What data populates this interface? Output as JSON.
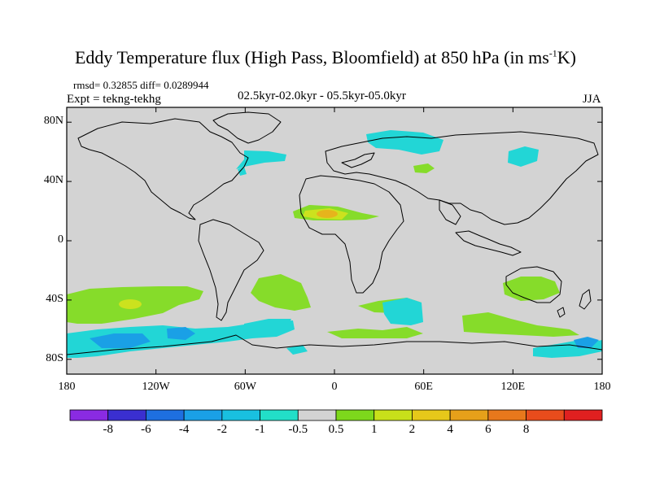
{
  "title": {
    "main": "Eddy Temperature flux (High Pass, Bloomfield) at 850 hPa (in ms",
    "sup": "-1",
    "unit_end": "K)"
  },
  "stats": "rmsd= 0.32855  diff= 0.0289944",
  "experiment": "Expt = tekng-tekhg",
  "period": "02.5kyr-02.0kyr - 05.5kyr-05.0kyr",
  "season": "JJA",
  "axes": {
    "y_ticks": [
      {
        "label": "80N",
        "lat": 80
      },
      {
        "label": "40N",
        "lat": 40
      },
      {
        "label": "0",
        "lat": 0
      },
      {
        "label": "40S",
        "lat": -40
      },
      {
        "label": "80S",
        "lat": -80
      }
    ],
    "x_ticks": [
      {
        "label": "180",
        "lon": -180
      },
      {
        "label": "120W",
        "lon": -120
      },
      {
        "label": "60W",
        "lon": -60
      },
      {
        "label": "0",
        "lon": 0
      },
      {
        "label": "60E",
        "lon": 60
      },
      {
        "label": "120E",
        "lon": 120
      },
      {
        "label": "180",
        "lon": 180
      }
    ]
  },
  "colorbar": {
    "colors": [
      "#8a2be2",
      "#3a2fd0",
      "#1e6fe0",
      "#1aa0e6",
      "#19c0e0",
      "#22dfc8",
      "#d3d3d3",
      "#7dd81c",
      "#c8e01a",
      "#e6c81a",
      "#e6a01a",
      "#e8781c",
      "#e84c1c",
      "#e02020"
    ],
    "labels": [
      "-8",
      "-6",
      "-4",
      "-2",
      "-1",
      "-0.5",
      "0.5",
      "1",
      "2",
      "4",
      "6",
      "8"
    ]
  },
  "colors": {
    "land_ocean_bg": "#d3d3d3",
    "negative_light": "#22d6d6",
    "positive_light": "#86dc2a",
    "positive_mid": "#cce21e",
    "positive_high": "#e6b41c"
  }
}
